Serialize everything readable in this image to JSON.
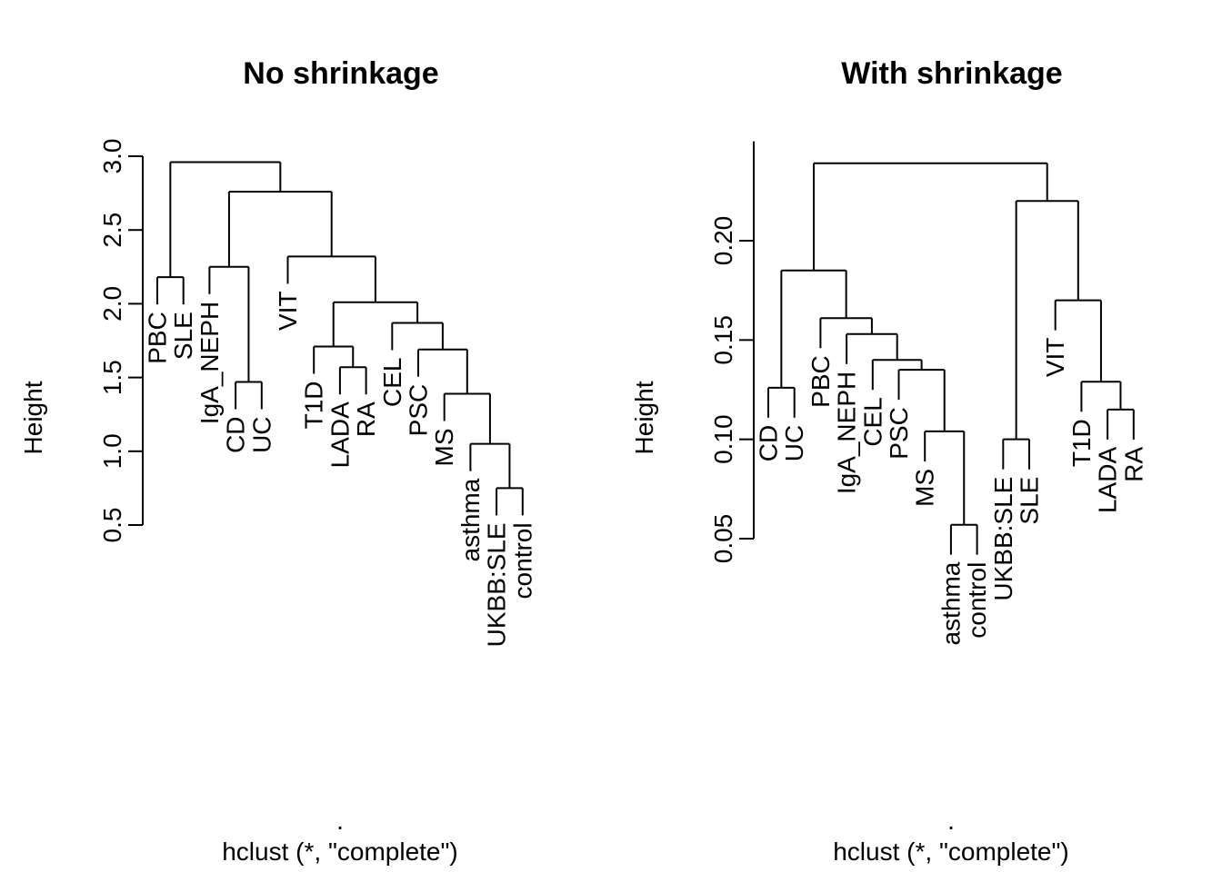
{
  "chart_data": [
    {
      "type": "dendrogram",
      "title": "No shrinkage",
      "ylabel": "Height",
      "xlabel": ".",
      "sub": "hclust (*, \"complete\")",
      "ylim": [
        0.5,
        3.0
      ],
      "yticks": [
        "0.5",
        "1.0",
        "1.5",
        "2.0",
        "2.5",
        "3.0"
      ],
      "leaves": [
        "PBC",
        "SLE",
        "IgA_NEPH",
        "CD",
        "UC",
        "VIT",
        "T1D",
        "LADA",
        "RA",
        "CEL",
        "PSC",
        "MS",
        "asthma",
        "UKBB:SLE",
        "control"
      ],
      "merges": [
        {
          "left": "PBC",
          "right": "SLE",
          "height": 2.18
        },
        {
          "left": "CD",
          "right": "UC",
          "height": 1.47
        },
        {
          "left": "IgA_NEPH",
          "right": [
            "CD",
            "UC"
          ],
          "height": 2.25
        },
        {
          "left": "LADA",
          "right": "RA",
          "height": 1.57
        },
        {
          "left": "T1D",
          "right": [
            "LADA",
            "RA"
          ],
          "height": 1.71
        },
        {
          "left": "UKBB:SLE",
          "right": "control",
          "height": 0.75
        },
        {
          "left": "asthma",
          "right": [
            "UKBB:SLE",
            "control"
          ],
          "height": 1.05
        },
        {
          "left": "MS",
          "right": [
            "asthma",
            "UKBB:SLE",
            "control"
          ],
          "height": 1.39
        },
        {
          "left": "PSC",
          "right": [
            "MS",
            "asthma",
            "UKBB:SLE",
            "control"
          ],
          "height": 1.69
        },
        {
          "left": "CEL",
          "right": [
            "PSC",
            "MS",
            "asthma",
            "UKBB:SLE",
            "control"
          ],
          "height": 1.87
        },
        {
          "left": [
            "T1D",
            "LADA",
            "RA"
          ],
          "right": [
            "CEL",
            "PSC",
            "MS",
            "asthma",
            "UKBB:SLE",
            "control"
          ],
          "height": 2.01
        },
        {
          "left": "VIT",
          "right": [
            "T1D",
            "LADA",
            "RA",
            "CEL",
            "PSC",
            "MS",
            "asthma",
            "UKBB:SLE",
            "control"
          ],
          "height": 2.32
        },
        {
          "left": [
            "IgA_NEPH",
            "CD",
            "UC"
          ],
          "right": [
            "VIT",
            "T1D",
            "LADA",
            "RA",
            "CEL",
            "PSC",
            "MS",
            "asthma",
            "UKBB:SLE",
            "control"
          ],
          "height": 2.76
        },
        {
          "left": [
            "PBC",
            "SLE"
          ],
          "right": [
            "IgA_NEPH",
            "CD",
            "UC",
            "VIT",
            "T1D",
            "LADA",
            "RA",
            "CEL",
            "PSC",
            "MS",
            "asthma",
            "UKBB:SLE",
            "control"
          ],
          "height": 2.96
        }
      ]
    },
    {
      "type": "dendrogram",
      "title": "With shrinkage",
      "ylabel": "Height",
      "xlabel": ".",
      "sub": "hclust (*, \"complete\")",
      "ylim": [
        0.05,
        0.25
      ],
      "yticks": [
        "0.05",
        "0.10",
        "0.15",
        "0.20"
      ],
      "leaves": [
        "CD",
        "UC",
        "PBC",
        "IgA_NEPH",
        "CEL",
        "PSC",
        "MS",
        "asthma",
        "control",
        "UKBB:SLE",
        "SLE",
        "VIT",
        "T1D",
        "LADA",
        "RA"
      ],
      "merges": [
        {
          "left": "CD",
          "right": "UC",
          "height": 0.126
        },
        {
          "left": "asthma",
          "right": "control",
          "height": 0.057
        },
        {
          "left": "MS",
          "right": [
            "asthma",
            "control"
          ],
          "height": 0.104
        },
        {
          "left": "PSC",
          "right": [
            "MS",
            "asthma",
            "control"
          ],
          "height": 0.135
        },
        {
          "left": "CEL",
          "right": [
            "PSC",
            "MS",
            "asthma",
            "control"
          ],
          "height": 0.14
        },
        {
          "left": "IgA_NEPH",
          "right": [
            "CEL",
            "PSC",
            "MS",
            "asthma",
            "control"
          ],
          "height": 0.153
        },
        {
          "left": "PBC",
          "right": [
            "IgA_NEPH",
            "CEL",
            "PSC",
            "MS",
            "asthma",
            "control"
          ],
          "height": 0.161
        },
        {
          "left": [
            "CD",
            "UC"
          ],
          "right": [
            "PBC",
            "IgA_NEPH",
            "CEL",
            "PSC",
            "MS",
            "asthma",
            "control"
          ],
          "height": 0.185
        },
        {
          "left": "UKBB:SLE",
          "right": "SLE",
          "height": 0.1
        },
        {
          "left": "LADA",
          "right": "RA",
          "height": 0.115
        },
        {
          "left": "T1D",
          "right": [
            "LADA",
            "RA"
          ],
          "height": 0.129
        },
        {
          "left": "VIT",
          "right": [
            "T1D",
            "LADA",
            "RA"
          ],
          "height": 0.17
        },
        {
          "left": [
            "UKBB:SLE",
            "SLE"
          ],
          "right": [
            "VIT",
            "T1D",
            "LADA",
            "RA"
          ],
          "height": 0.22
        },
        {
          "left": [
            "CD",
            "UC",
            "PBC",
            "IgA_NEPH",
            "CEL",
            "PSC",
            "MS",
            "asthma",
            "control"
          ],
          "right": [
            "UKBB:SLE",
            "SLE",
            "VIT",
            "T1D",
            "LADA",
            "RA"
          ],
          "height": 0.239
        }
      ]
    }
  ]
}
